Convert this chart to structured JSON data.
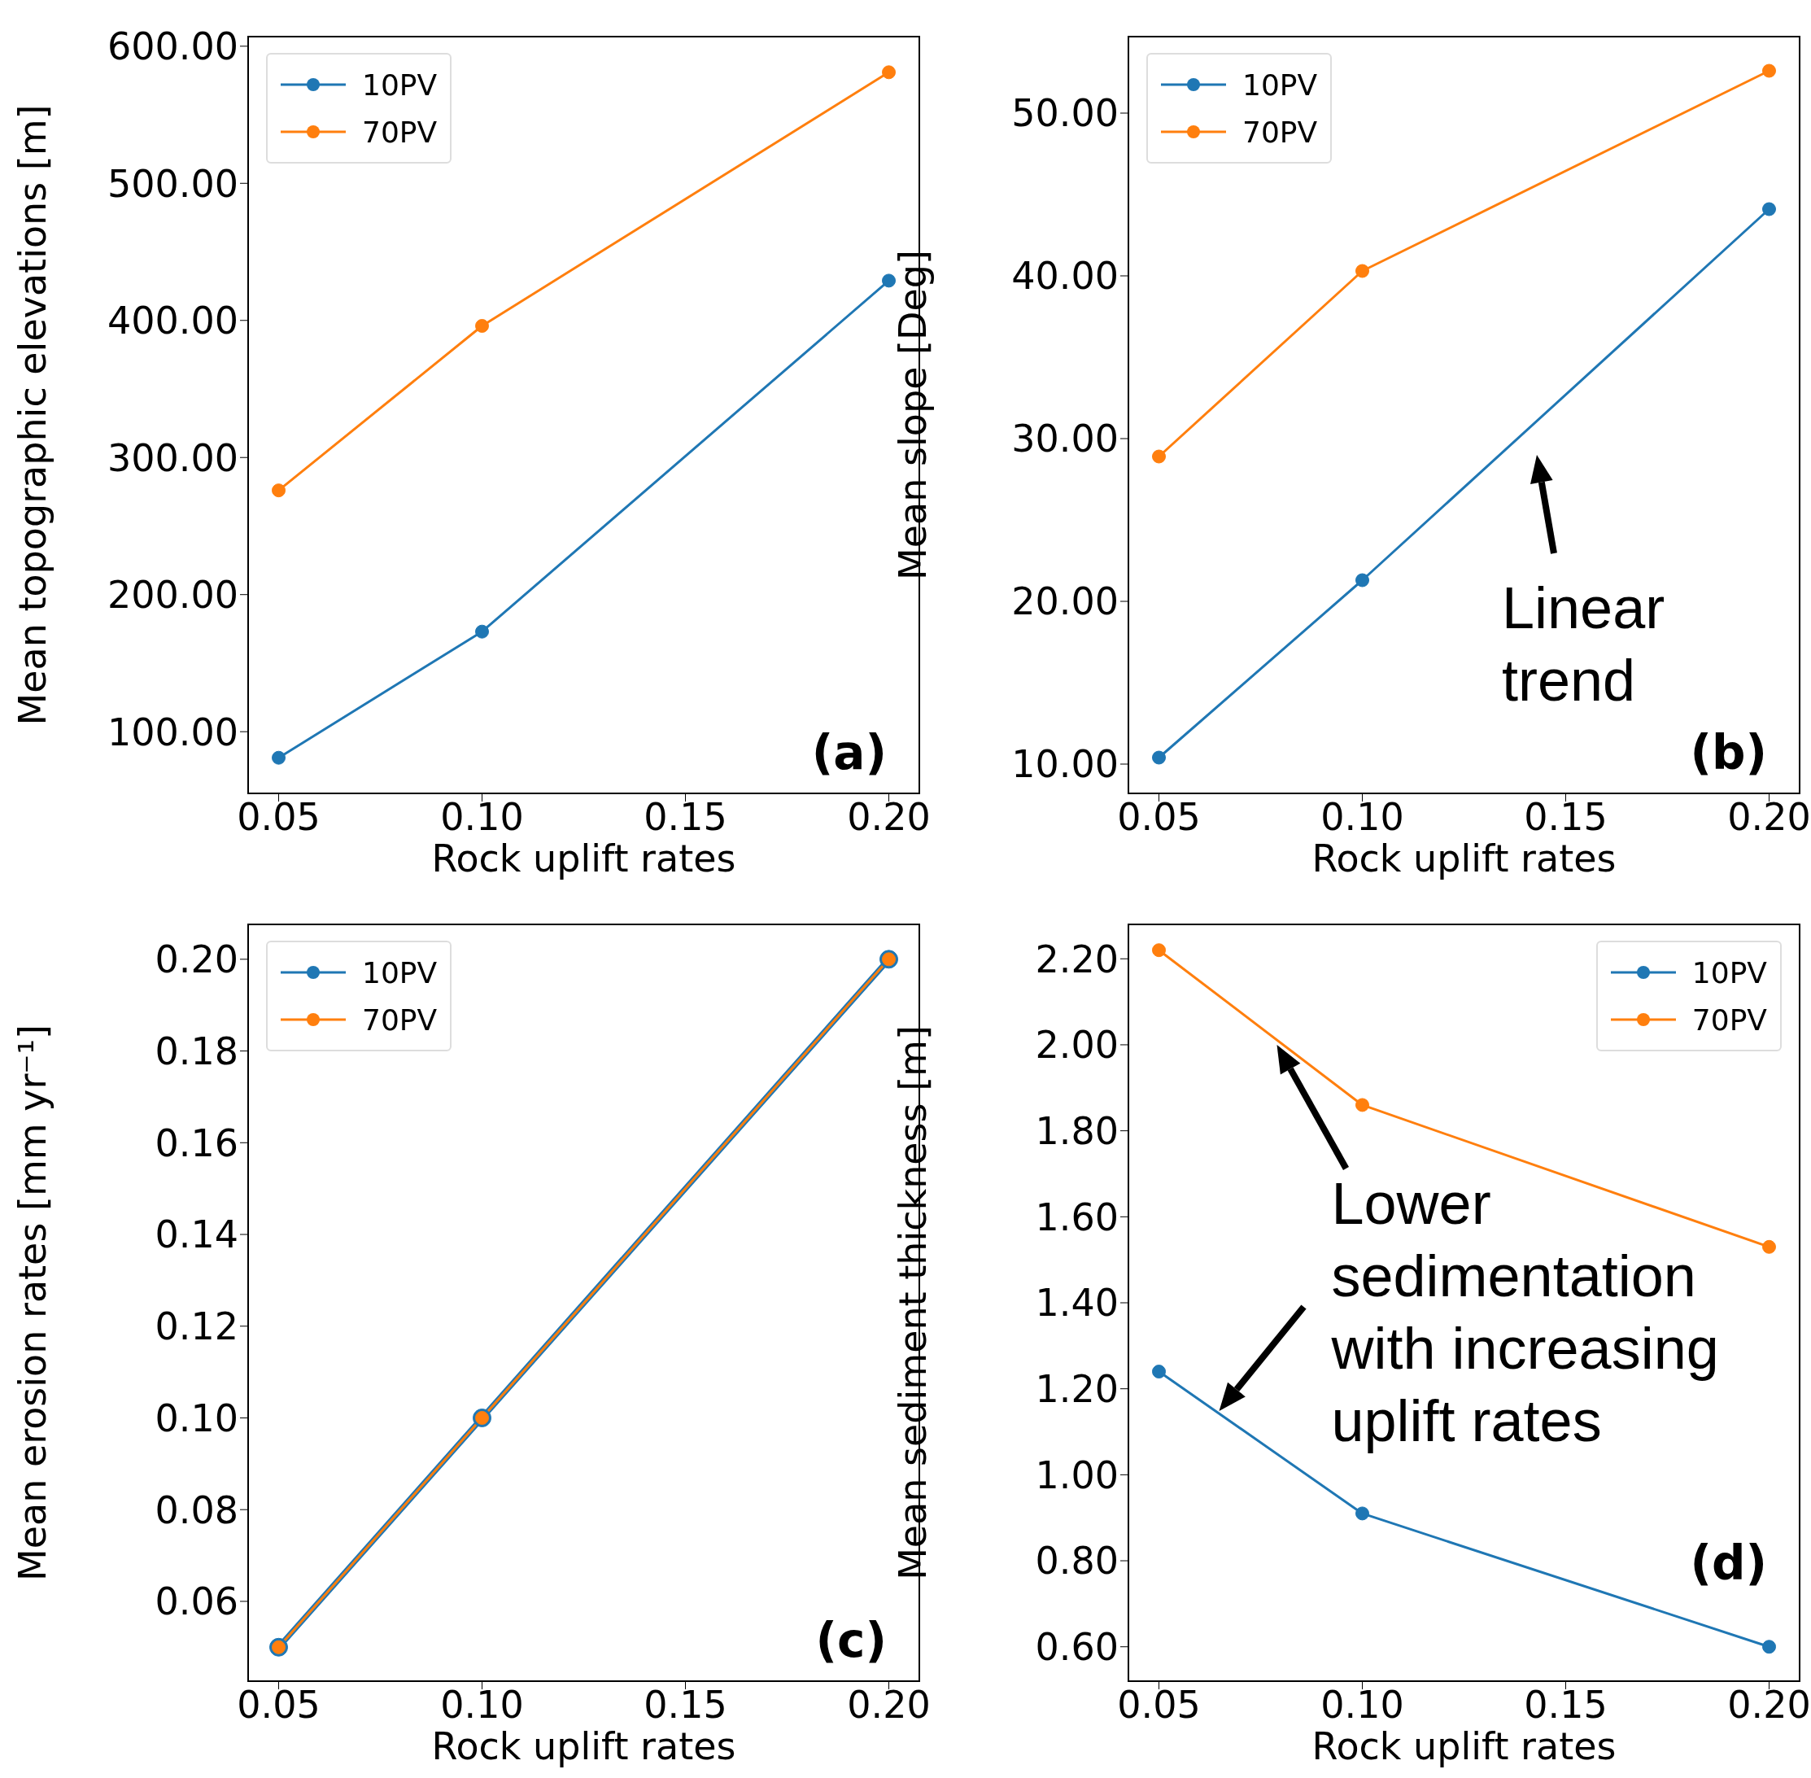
{
  "chart_data": [
    {
      "type": "line",
      "xlabel": "Rock uplift rates",
      "ylabel": "Mean topographic elevations [m]",
      "x": [
        0.05,
        0.1,
        0.2
      ],
      "xlim": [
        0.0425,
        0.2075
      ],
      "xticks": [
        {
          "value": 0.05,
          "label": "0.05"
        },
        {
          "value": 0.1,
          "label": "0.10"
        },
        {
          "value": 0.15,
          "label": "0.15"
        },
        {
          "value": 0.2,
          "label": "0.20"
        }
      ],
      "ylim": [
        55,
        607
      ],
      "yticks": [
        {
          "value": 100,
          "label": "100.00"
        },
        {
          "value": 200,
          "label": "200.00"
        },
        {
          "value": 300,
          "label": "300.00"
        },
        {
          "value": 400,
          "label": "400.00"
        },
        {
          "value": 500,
          "label": "500.00"
        },
        {
          "value": 600,
          "label": "600.00"
        }
      ],
      "marker": "circle",
      "legend": "top left",
      "series": [
        {
          "name": "10PV",
          "color": "#1f77b4",
          "values": [
            81,
            173,
            429
          ]
        },
        {
          "name": "70PV",
          "color": "#ff7f0e",
          "values": [
            276,
            396,
            581
          ]
        }
      ],
      "annotations": [
        "(a)"
      ]
    },
    {
      "type": "line",
      "xlabel": "Rock uplift rates",
      "ylabel": "Mean slope [Deg]",
      "x": [
        0.05,
        0.1,
        0.2
      ],
      "xlim": [
        0.0425,
        0.2075
      ],
      "xticks": [
        {
          "value": 0.05,
          "label": "0.05"
        },
        {
          "value": 0.1,
          "label": "0.10"
        },
        {
          "value": 0.15,
          "label": "0.15"
        },
        {
          "value": 0.2,
          "label": "0.20"
        }
      ],
      "ylim": [
        8.2,
        54.7
      ],
      "yticks": [
        {
          "value": 10,
          "label": "10.00"
        },
        {
          "value": 20,
          "label": "20.00"
        },
        {
          "value": 30,
          "label": "30.00"
        },
        {
          "value": 40,
          "label": "40.00"
        },
        {
          "value": 50,
          "label": "50.00"
        }
      ],
      "marker": "circle",
      "legend": "top left",
      "series": [
        {
          "name": "10PV",
          "color": "#1f77b4",
          "values": [
            10.4,
            21.3,
            44.1
          ]
        },
        {
          "name": "70PV",
          "color": "#ff7f0e",
          "values": [
            28.9,
            40.3,
            52.6
          ]
        }
      ],
      "annotations": [
        "Linear\ntrend",
        "(b)"
      ]
    },
    {
      "type": "line",
      "xlabel": "Rock uplift rates",
      "ylabel": "Mean erosion rates [mm yr⁻¹]",
      "x": [
        0.05,
        0.1,
        0.2
      ],
      "xlim": [
        0.0425,
        0.2075
      ],
      "xticks": [
        {
          "value": 0.05,
          "label": "0.05"
        },
        {
          "value": 0.1,
          "label": "0.10"
        },
        {
          "value": 0.15,
          "label": "0.15"
        },
        {
          "value": 0.2,
          "label": "0.20"
        }
      ],
      "ylim": [
        0.0426,
        0.2076
      ],
      "yticks": [
        {
          "value": 0.06,
          "label": "0.06"
        },
        {
          "value": 0.08,
          "label": "0.08"
        },
        {
          "value": 0.1,
          "label": "0.10"
        },
        {
          "value": 0.12,
          "label": "0.12"
        },
        {
          "value": 0.14,
          "label": "0.14"
        },
        {
          "value": 0.16,
          "label": "0.16"
        },
        {
          "value": 0.18,
          "label": "0.18"
        },
        {
          "value": 0.2,
          "label": "0.20"
        }
      ],
      "marker": "circle",
      "legend": "top left",
      "series": [
        {
          "name": "10PV",
          "color": "#1f77b4",
          "values": [
            0.05,
            0.1,
            0.2
          ]
        },
        {
          "name": "70PV",
          "color": "#ff7f0e",
          "values": [
            0.05,
            0.1,
            0.2
          ]
        }
      ],
      "annotations": [
        "(c)"
      ]
    },
    {
      "type": "line",
      "xlabel": "Rock uplift rates",
      "ylabel": "Mean sediment thickness [m]",
      "x": [
        0.05,
        0.1,
        0.2
      ],
      "xlim": [
        0.0425,
        0.2075
      ],
      "xticks": [
        {
          "value": 0.05,
          "label": "0.05"
        },
        {
          "value": 0.1,
          "label": "0.10"
        },
        {
          "value": 0.15,
          "label": "0.15"
        },
        {
          "value": 0.2,
          "label": "0.20"
        }
      ],
      "ylim": [
        0.52,
        2.28
      ],
      "yticks": [
        {
          "value": 0.6,
          "label": "0.60"
        },
        {
          "value": 0.8,
          "label": "0.80"
        },
        {
          "value": 1,
          "label": "1.00"
        },
        {
          "value": 1.2,
          "label": "1.20"
        },
        {
          "value": 1.4,
          "label": "1.40"
        },
        {
          "value": 1.6,
          "label": "1.60"
        },
        {
          "value": 1.8,
          "label": "1.80"
        },
        {
          "value": 2,
          "label": "2.00"
        },
        {
          "value": 2.2,
          "label": "2.20"
        }
      ],
      "marker": "circle",
      "legend": "top right",
      "series": [
        {
          "name": "10PV",
          "color": "#1f77b4",
          "values": [
            1.24,
            0.91,
            0.6
          ]
        },
        {
          "name": "70PV",
          "color": "#ff7f0e",
          "values": [
            2.22,
            1.86,
            1.53
          ]
        }
      ],
      "annotations": [
        {
          "text": "Lower\nsedimentation\nwith increasing\nuplift rates",
          "x": 0.079,
          "y": 2.0
        },
        "(d)"
      ]
    }
  ]
}
